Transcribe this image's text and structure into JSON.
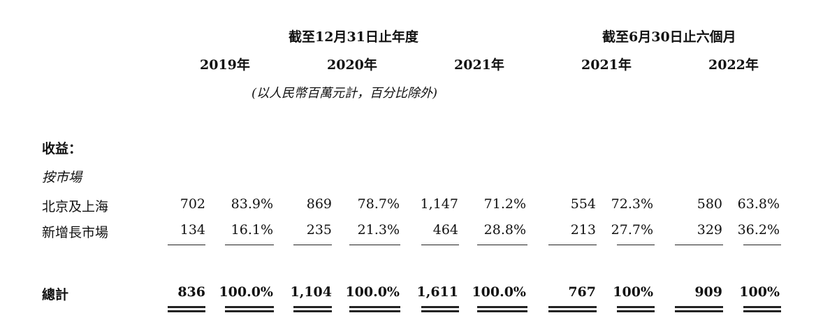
{
  "header": {
    "fy_group": "截至12月31日止年度",
    "h1_group": "截至6月30日止六個月",
    "years": [
      "2019年",
      "2020年",
      "2021年",
      "2021年",
      "2022年"
    ],
    "unit_note": "(以人民幣百萬元計，百分比除外)"
  },
  "section": {
    "title": "收益：",
    "subtitle": "按市場"
  },
  "rows": [
    {
      "label": "北京及上海",
      "cells": [
        "702",
        "83.9%",
        "869",
        "78.7%",
        "1,147",
        "71.2%",
        "554",
        "72.3%",
        "580",
        "63.8%"
      ]
    },
    {
      "label": "新增長市場",
      "cells": [
        "134",
        "16.1%",
        "235",
        "21.3%",
        "464",
        "28.8%",
        "213",
        "27.7%",
        "329",
        "36.2%"
      ]
    }
  ],
  "total": {
    "label": "總計",
    "cells": [
      "836",
      "100.0%",
      "1,104",
      "100.0%",
      "1,611",
      "100.0%",
      "767",
      "100%",
      "909",
      "100%"
    ]
  }
}
